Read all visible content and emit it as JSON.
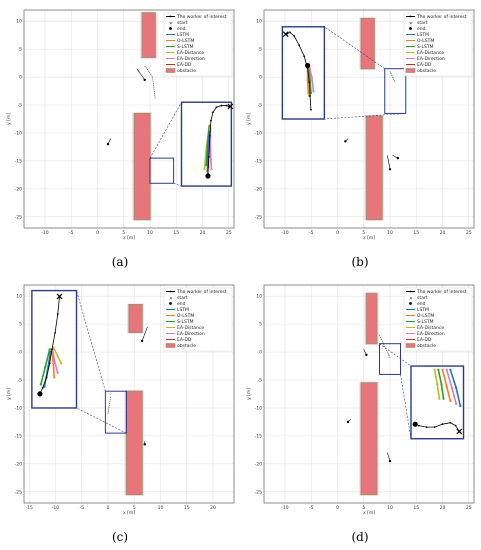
{
  "legend": {
    "entries": [
      {
        "key": "worker",
        "label": "The worker of interest",
        "color": "#000000",
        "kind": "line-dot"
      },
      {
        "key": "start",
        "label": "start",
        "color": "#000000",
        "kind": "x"
      },
      {
        "key": "end",
        "label": "end",
        "color": "#000000",
        "kind": "dot"
      },
      {
        "key": "lstm",
        "label": "LSTM",
        "color": "#1f77b4",
        "kind": "line"
      },
      {
        "key": "olstm",
        "label": "O-LSTM",
        "color": "#ff7f0e",
        "kind": "line"
      },
      {
        "key": "slstm",
        "label": "S-LSTM",
        "color": "#2ca02c",
        "kind": "line"
      },
      {
        "key": "eadist",
        "label": "EA-Distance",
        "color": "#bcbd22",
        "kind": "line"
      },
      {
        "key": "eadir",
        "label": "EA-Direction",
        "color": "#e377c2",
        "kind": "line"
      },
      {
        "key": "eadd",
        "label": "EA-DD",
        "color": "#d62728",
        "kind": "line"
      },
      {
        "key": "obs",
        "label": "obstacle",
        "color": "#a0866a",
        "kind": "patch"
      }
    ]
  },
  "colors": {
    "obstacle_fill": "#e8757a",
    "obstacle_edge": "#a89070",
    "zoom_frame": "#2b3a8f",
    "grid": "#dddddd",
    "worker": "#000000"
  },
  "chart_data": [
    {
      "type": "line",
      "panel": "a",
      "caption": "(a)",
      "xlabel": "x [m]",
      "ylabel": "y [m]",
      "xlim": [
        -14,
        26
      ],
      "ylim": [
        -27,
        12
      ],
      "xticks": [
        -10,
        -5,
        0,
        5,
        10,
        15,
        20,
        25
      ],
      "yticks": [
        -25,
        -20,
        -15,
        -10,
        -5,
        0,
        5,
        10
      ],
      "grid": true,
      "legend_loc": "top-right",
      "obstacles": [
        [
          8.5,
          3.5,
          11.0,
          11.5
        ],
        [
          7.0,
          -25.5,
          10.0,
          -6.5
        ]
      ],
      "other_workers": [
        [
          [
            7.5,
            1.5
          ],
          [
            9.0,
            -0.5
          ]
        ],
        [
          [
            2.5,
            -11.0
          ],
          [
            2.0,
            -12.0
          ]
        ]
      ],
      "worker_path": [
        [
          9.0,
          2.0
        ],
        [
          10.5,
          0.0
        ],
        [
          11.0,
          -4.0
        ]
      ],
      "inset_source": [
        10.0,
        -19.0,
        14.5,
        -14.5
      ],
      "inset_box": [
        16.0,
        -19.5,
        25.5,
        -4.5
      ],
      "inset_worker": [
        [
          0.95,
          0.05
        ],
        [
          0.9,
          0.04
        ],
        [
          0.8,
          0.04
        ],
        [
          0.7,
          0.06
        ],
        [
          0.63,
          0.12
        ],
        [
          0.59,
          0.22
        ],
        [
          0.57,
          0.4
        ],
        [
          0.55,
          0.65
        ],
        [
          0.53,
          0.85
        ]
      ],
      "inset_preds": [
        {
          "series": "eadist",
          "pts": [
            [
              0.55,
              0.3
            ],
            [
              0.5,
              0.55
            ],
            [
              0.46,
              0.8
            ]
          ]
        },
        {
          "series": "slstm",
          "pts": [
            [
              0.56,
              0.28
            ],
            [
              0.52,
              0.52
            ],
            [
              0.5,
              0.75
            ]
          ]
        },
        {
          "series": "olstm",
          "pts": [
            [
              0.57,
              0.3
            ],
            [
              0.55,
              0.55
            ],
            [
              0.54,
              0.78
            ]
          ]
        },
        {
          "series": "eadir",
          "pts": [
            [
              0.58,
              0.32
            ],
            [
              0.58,
              0.58
            ],
            [
              0.6,
              0.8
            ]
          ]
        },
        {
          "series": "lstm",
          "pts": [
            [
              0.56,
              0.35
            ],
            [
              0.53,
              0.6
            ],
            [
              0.52,
              0.82
            ]
          ]
        }
      ],
      "inset_end": [
        0.53,
        0.88
      ],
      "inset_start": [
        0.98,
        0.05
      ]
    },
    {
      "type": "line",
      "panel": "b",
      "caption": "(b)",
      "xlabel": "x [m]",
      "ylabel": "y [m]",
      "xlim": [
        -14,
        26
      ],
      "ylim": [
        -27,
        12
      ],
      "xticks": [
        -10,
        -5,
        0,
        5,
        10,
        15,
        20,
        25
      ],
      "yticks": [
        -25,
        -20,
        -15,
        -10,
        -5,
        0,
        5,
        10
      ],
      "grid": true,
      "legend_loc": "top-right",
      "obstacles": [
        [
          4.5,
          1.5,
          7.0,
          10.5
        ],
        [
          5.5,
          -25.5,
          8.5,
          -7.0
        ]
      ],
      "other_workers": [
        [
          [
            2.0,
            -11.0
          ],
          [
            1.5,
            -11.5
          ]
        ],
        [
          [
            9.5,
            -14.0
          ],
          [
            10.0,
            -16.5
          ]
        ],
        [
          [
            10.5,
            -14.0
          ],
          [
            11.5,
            -14.5
          ]
        ]
      ],
      "worker_path": [
        [
          10.0,
          1.0
        ],
        [
          11.0,
          -1.0
        ]
      ],
      "inset_source": [
        9.0,
        -6.5,
        13.0,
        1.5
      ],
      "inset_box": [
        -10.5,
        -7.5,
        -2.5,
        9.0
      ],
      "inset_worker": [
        [
          0.1,
          0.08
        ],
        [
          0.18,
          0.06
        ],
        [
          0.28,
          0.1
        ],
        [
          0.4,
          0.2
        ],
        [
          0.52,
          0.32
        ],
        [
          0.6,
          0.45
        ],
        [
          0.64,
          0.6
        ],
        [
          0.66,
          0.75
        ],
        [
          0.68,
          0.9
        ]
      ],
      "inset_preds": [
        {
          "series": "eadist",
          "pts": [
            [
              0.6,
              0.45
            ],
            [
              0.62,
              0.6
            ],
            [
              0.63,
              0.75
            ]
          ]
        },
        {
          "series": "slstm",
          "pts": [
            [
              0.62,
              0.42
            ],
            [
              0.66,
              0.58
            ],
            [
              0.68,
              0.72
            ]
          ]
        },
        {
          "series": "eadir",
          "pts": [
            [
              0.64,
              0.42
            ],
            [
              0.7,
              0.55
            ],
            [
              0.74,
              0.7
            ]
          ]
        },
        {
          "series": "olstm",
          "pts": [
            [
              0.6,
              0.42
            ],
            [
              0.6,
              0.58
            ],
            [
              0.62,
              0.72
            ]
          ]
        }
      ],
      "inset_end": [
        0.6,
        0.42
      ],
      "inset_start": [
        0.08,
        0.08
      ]
    },
    {
      "type": "line",
      "panel": "c",
      "caption": "(c)",
      "xlabel": "x [m]",
      "ylabel": "y [m]",
      "xlim": [
        -16,
        24
      ],
      "ylim": [
        -27,
        12
      ],
      "xticks": [
        -15,
        -10,
        -5,
        0,
        5,
        10,
        15,
        20
      ],
      "yticks": [
        -25,
        -20,
        -15,
        -10,
        -5,
        0,
        5,
        10
      ],
      "grid": true,
      "legend_loc": "top-right",
      "obstacles": [
        [
          4.0,
          3.5,
          6.5,
          8.5
        ],
        [
          3.5,
          -25.5,
          6.5,
          -7.0
        ]
      ],
      "other_workers": [
        [
          [
            7.5,
            4.5
          ],
          [
            6.5,
            2.0
          ]
        ],
        [
          [
            7.0,
            -16.0
          ],
          [
            7.0,
            -16.5
          ]
        ]
      ],
      "worker_path": [
        [
          0.5,
          -8.0
        ],
        [
          0.0,
          -11.0
        ]
      ],
      "inset_source": [
        -0.5,
        -14.5,
        3.5,
        -7.0
      ],
      "inset_box": [
        -14.5,
        -10.0,
        -6.0,
        11.0
      ],
      "inset_worker": [
        [
          0.62,
          0.05
        ],
        [
          0.58,
          0.2
        ],
        [
          0.52,
          0.36
        ],
        [
          0.45,
          0.5
        ],
        [
          0.4,
          0.62
        ],
        [
          0.33,
          0.74
        ],
        [
          0.24,
          0.83
        ],
        [
          0.18,
          0.88
        ]
      ],
      "inset_preds": [
        {
          "series": "slstm",
          "pts": [
            [
              0.4,
              0.5
            ],
            [
              0.3,
              0.65
            ],
            [
              0.2,
              0.8
            ]
          ]
        },
        {
          "series": "olstm",
          "pts": [
            [
              0.45,
              0.5
            ],
            [
              0.48,
              0.62
            ],
            [
              0.5,
              0.74
            ]
          ]
        },
        {
          "series": "eadist",
          "pts": [
            [
              0.48,
              0.48
            ],
            [
              0.58,
              0.56
            ],
            [
              0.66,
              0.62
            ]
          ]
        },
        {
          "series": "lstm",
          "pts": [
            [
              0.42,
              0.52
            ],
            [
              0.35,
              0.68
            ],
            [
              0.28,
              0.82
            ]
          ]
        },
        {
          "series": "eadir",
          "pts": [
            [
              0.46,
              0.5
            ],
            [
              0.52,
              0.62
            ],
            [
              0.58,
              0.7
            ]
          ]
        }
      ],
      "inset_end": [
        0.18,
        0.88
      ],
      "inset_start": [
        0.62,
        0.05
      ]
    },
    {
      "type": "line",
      "panel": "d",
      "caption": "(d)",
      "xlabel": "x [m]",
      "ylabel": "y [m]",
      "xlim": [
        -14,
        26
      ],
      "ylim": [
        -27,
        12
      ],
      "xticks": [
        -10,
        -5,
        0,
        5,
        10,
        15,
        20,
        25
      ],
      "yticks": [
        -25,
        -20,
        -15,
        -10,
        -5,
        0,
        5,
        10
      ],
      "grid": true,
      "legend_loc": "top-right",
      "obstacles": [
        [
          5.5,
          1.5,
          7.5,
          10.5
        ],
        [
          4.5,
          -25.5,
          7.5,
          -5.5
        ]
      ],
      "other_workers": [
        [
          [
            2.5,
            -12.0
          ],
          [
            2.0,
            -12.5
          ]
        ],
        [
          [
            9.5,
            -18.0
          ],
          [
            10.0,
            -19.5
          ]
        ],
        [
          [
            5.0,
            0.5
          ],
          [
            5.5,
            -0.5
          ]
        ]
      ],
      "worker_path": [
        [
          8.0,
          3.0
        ],
        [
          10.0,
          -1.0
        ]
      ],
      "inset_source": [
        8.0,
        -4.0,
        12.0,
        1.5
      ],
      "inset_box": [
        14.0,
        -15.5,
        24.0,
        -2.5
      ],
      "inset_worker": [
        [
          0.92,
          0.9
        ],
        [
          0.85,
          0.82
        ],
        [
          0.75,
          0.78
        ],
        [
          0.6,
          0.8
        ],
        [
          0.45,
          0.84
        ],
        [
          0.3,
          0.84
        ],
        [
          0.15,
          0.82
        ],
        [
          0.08,
          0.8
        ]
      ],
      "inset_preds": [
        {
          "series": "slstm",
          "pts": [
            [
              0.52,
              0.05
            ],
            [
              0.58,
              0.25
            ],
            [
              0.62,
              0.45
            ]
          ]
        },
        {
          "series": "olstm",
          "pts": [
            [
              0.6,
              0.05
            ],
            [
              0.68,
              0.28
            ],
            [
              0.75,
              0.48
            ]
          ]
        },
        {
          "series": "eadir",
          "pts": [
            [
              0.68,
              0.05
            ],
            [
              0.78,
              0.3
            ],
            [
              0.86,
              0.52
            ]
          ]
        },
        {
          "series": "eadist",
          "pts": [
            [
              0.45,
              0.05
            ],
            [
              0.5,
              0.25
            ],
            [
              0.54,
              0.45
            ]
          ]
        },
        {
          "series": "lstm",
          "pts": [
            [
              0.75,
              0.05
            ],
            [
              0.86,
              0.3
            ],
            [
              0.94,
              0.55
            ]
          ]
        }
      ],
      "inset_end": [
        0.08,
        0.8
      ],
      "inset_start": [
        0.92,
        0.9
      ]
    }
  ]
}
